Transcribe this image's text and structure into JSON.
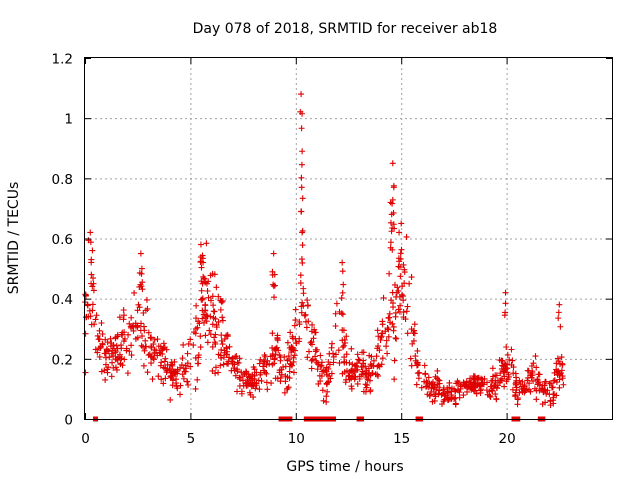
{
  "chart_data": {
    "type": "scatter",
    "title": "Day 078 of 2018, SRMTID for receiver ab18",
    "xlabel": "GPS time / hours",
    "ylabel": "SRMTID / TECUs",
    "xlim": [
      0,
      25
    ],
    "ylim": [
      0,
      1.2
    ],
    "xticks": [
      "0",
      "5",
      "10",
      "15",
      "20"
    ],
    "yticks": [
      "0",
      "0.2",
      "0.4",
      "0.6",
      "0.8",
      "1",
      "1.2"
    ],
    "grid": true,
    "marker_color": "#e00000",
    "series": [
      {
        "name": "SRMTID",
        "marker": "plus",
        "profile": [
          [
            0.0,
            0.33
          ],
          [
            0.15,
            0.45
          ],
          [
            0.3,
            0.38
          ],
          [
            0.5,
            0.3
          ],
          [
            0.8,
            0.24
          ],
          [
            1.1,
            0.18
          ],
          [
            1.4,
            0.2
          ],
          [
            1.7,
            0.24
          ],
          [
            2.0,
            0.26
          ],
          [
            2.3,
            0.29
          ],
          [
            2.6,
            0.33
          ],
          [
            2.9,
            0.27
          ],
          [
            3.2,
            0.26
          ],
          [
            3.5,
            0.22
          ],
          [
            3.8,
            0.19
          ],
          [
            4.1,
            0.15
          ],
          [
            4.4,
            0.14
          ],
          [
            4.7,
            0.18
          ],
          [
            5.0,
            0.22
          ],
          [
            5.3,
            0.27
          ],
          [
            5.6,
            0.37
          ],
          [
            5.8,
            0.4
          ],
          [
            6.1,
            0.32
          ],
          [
            6.4,
            0.29
          ],
          [
            6.7,
            0.25
          ],
          [
            7.0,
            0.2
          ],
          [
            7.3,
            0.14
          ],
          [
            7.6,
            0.11
          ],
          [
            7.9,
            0.12
          ],
          [
            8.2,
            0.14
          ],
          [
            8.5,
            0.17
          ],
          [
            8.8,
            0.2
          ],
          [
            9.1,
            0.22
          ],
          [
            9.3,
            0.15
          ],
          [
            9.6,
            0.18
          ],
          [
            9.9,
            0.25
          ],
          [
            10.2,
            0.4
          ],
          [
            10.4,
            0.38
          ],
          [
            10.6,
            0.24
          ],
          [
            10.9,
            0.21
          ],
          [
            11.2,
            0.17
          ],
          [
            11.5,
            0.13
          ],
          [
            11.8,
            0.22
          ],
          [
            12.0,
            0.32
          ],
          [
            12.2,
            0.28
          ],
          [
            12.5,
            0.15
          ],
          [
            12.8,
            0.14
          ],
          [
            13.1,
            0.16
          ],
          [
            13.4,
            0.14
          ],
          [
            13.7,
            0.18
          ],
          [
            14.0,
            0.22
          ],
          [
            14.3,
            0.33
          ],
          [
            14.6,
            0.37
          ],
          [
            14.9,
            0.42
          ],
          [
            15.2,
            0.39
          ],
          [
            15.5,
            0.3
          ],
          [
            15.8,
            0.18
          ],
          [
            16.1,
            0.14
          ],
          [
            16.4,
            0.11
          ],
          [
            16.7,
            0.1
          ],
          [
            17.0,
            0.09
          ],
          [
            17.3,
            0.08
          ],
          [
            17.6,
            0.09
          ],
          [
            17.9,
            0.1
          ],
          [
            18.2,
            0.1
          ],
          [
            18.5,
            0.11
          ],
          [
            18.8,
            0.12
          ],
          [
            19.1,
            0.1
          ],
          [
            19.4,
            0.11
          ],
          [
            19.7,
            0.14
          ],
          [
            20.0,
            0.17
          ],
          [
            20.2,
            0.2
          ],
          [
            20.4,
            0.11
          ],
          [
            20.7,
            0.1
          ],
          [
            21.0,
            0.12
          ],
          [
            21.3,
            0.16
          ],
          [
            21.6,
            0.1
          ],
          [
            21.9,
            0.09
          ],
          [
            22.2,
            0.08
          ],
          [
            22.5,
            0.18
          ],
          [
            22.7,
            0.15
          ]
        ],
        "spikes": [
          [
            0.25,
            0.62
          ],
          [
            0.35,
            0.56
          ],
          [
            2.65,
            0.55
          ],
          [
            2.7,
            0.5
          ],
          [
            5.5,
            0.58
          ],
          [
            5.6,
            0.52
          ],
          [
            8.95,
            0.55
          ],
          [
            9.0,
            0.48
          ],
          [
            10.25,
            1.08
          ],
          [
            10.3,
            0.89
          ],
          [
            10.28,
            0.77
          ],
          [
            10.3,
            0.62
          ],
          [
            12.2,
            0.52
          ],
          [
            14.5,
            0.72
          ],
          [
            14.55,
            0.68
          ],
          [
            14.6,
            0.85
          ],
          [
            14.65,
            0.77
          ],
          [
            14.9,
            0.62
          ],
          [
            15.0,
            0.65
          ],
          [
            19.95,
            0.42
          ],
          [
            22.5,
            0.38
          ]
        ],
        "zero_markers": [
          [
            0.5,
            0.55
          ],
          [
            9.3,
            9.75
          ],
          [
            10.5,
            11.4
          ],
          [
            11.55,
            11.8
          ],
          [
            13.0,
            13.15
          ],
          [
            15.8,
            15.95
          ],
          [
            20.35,
            20.55
          ],
          [
            21.6,
            21.75
          ]
        ]
      }
    ]
  }
}
